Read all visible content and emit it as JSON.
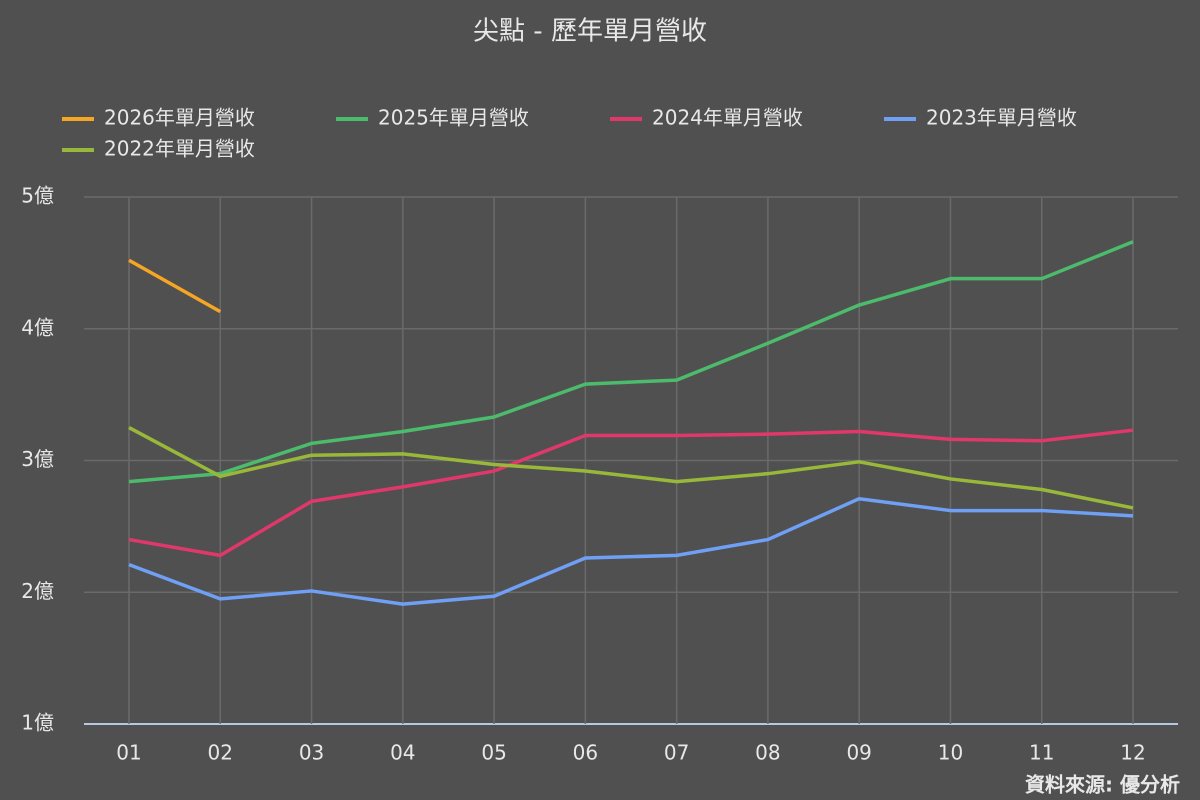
{
  "chart_data": {
    "type": "line",
    "title": "尖點 - 歷年單月營收",
    "source": "資料來源: 優分析",
    "categories": [
      "01",
      "02",
      "03",
      "04",
      "05",
      "06",
      "07",
      "08",
      "09",
      "10",
      "11",
      "12"
    ],
    "series": [
      {
        "name": "2026年單月營收",
        "color": "#f5a623",
        "values": [
          4.52,
          4.13,
          null,
          null,
          null,
          null,
          null,
          null,
          null,
          null,
          null,
          null
        ]
      },
      {
        "name": "2025年單月營收",
        "color": "#4cbb6c",
        "values": [
          2.84,
          2.9,
          3.13,
          3.22,
          3.33,
          3.58,
          3.61,
          3.89,
          4.18,
          4.38,
          4.38,
          4.66
        ]
      },
      {
        "name": "2024年單月營收",
        "color": "#e0386b",
        "values": [
          2.4,
          2.28,
          2.69,
          2.8,
          2.92,
          3.19,
          3.19,
          3.2,
          3.22,
          3.16,
          3.15,
          3.23
        ]
      },
      {
        "name": "2023年單月營收",
        "color": "#6fa0f5",
        "values": [
          2.21,
          1.95,
          2.01,
          1.91,
          1.97,
          2.26,
          2.28,
          2.4,
          2.71,
          2.62,
          2.62,
          2.58
        ]
      },
      {
        "name": "2022年單月營收",
        "color": "#99b83a",
        "values": [
          3.25,
          2.88,
          3.04,
          3.05,
          2.97,
          2.92,
          2.84,
          2.9,
          2.99,
          2.86,
          2.78,
          2.64
        ]
      }
    ],
    "ylim": [
      1,
      5
    ],
    "yticks": [
      {
        "value": 1,
        "label": "1億"
      },
      {
        "value": 2,
        "label": "2億"
      },
      {
        "value": 3,
        "label": "3億"
      },
      {
        "value": 4,
        "label": "4億"
      },
      {
        "value": 5,
        "label": "5億"
      }
    ],
    "grid": true
  }
}
